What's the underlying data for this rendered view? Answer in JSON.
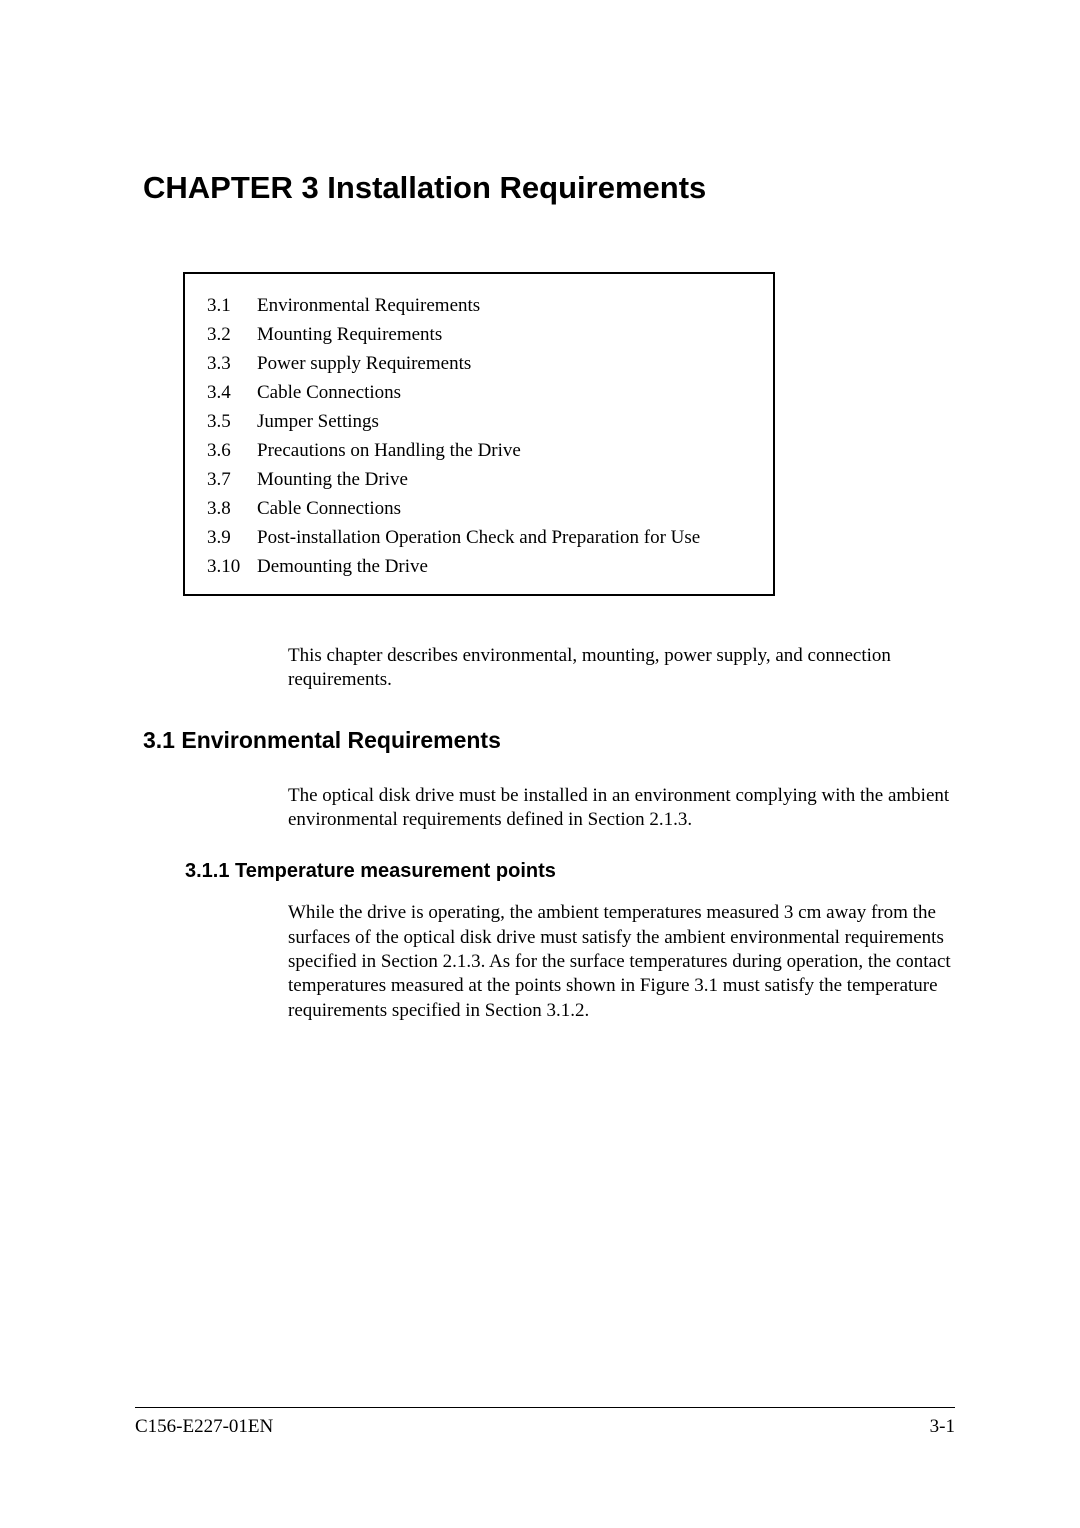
{
  "chapter": {
    "title": "CHAPTER 3  Installation Requirements"
  },
  "toc": {
    "items": [
      {
        "num": "3.1",
        "label": "Environmental Requirements"
      },
      {
        "num": "3.2",
        "label": "Mounting Requirements"
      },
      {
        "num": "3.3",
        "label": "Power supply Requirements"
      },
      {
        "num": "3.4",
        "label": "Cable Connections"
      },
      {
        "num": "3.5",
        "label": "Jumper Settings"
      },
      {
        "num": "3.6",
        "label": "Precautions on Handling the Drive"
      },
      {
        "num": "3.7",
        "label": "Mounting the Drive"
      },
      {
        "num": "3.8",
        "label": "Cable Connections"
      },
      {
        "num": "3.9",
        "label": "Post-installation Operation Check and Preparation for Use"
      },
      {
        "num": "3.10",
        "label": "Demounting the Drive"
      }
    ]
  },
  "intro": "This chapter describes environmental, mounting, power supply, and connection requirements.",
  "section_3_1": {
    "heading": "3.1  Environmental Requirements",
    "body": "The optical disk drive must be installed in an environment complying with the ambient environmental requirements defined in Section 2.1.3."
  },
  "section_3_1_1": {
    "heading": "3.1.1  Temperature measurement points",
    "body": "While the drive is operating, the ambient temperatures measured 3 cm away from the surfaces of the optical disk drive must satisfy the ambient environmental requirements specified in Section 2.1.3.  As for the surface temperatures during operation, the contact temperatures measured at the points shown in Figure 3.1 must satisfy the temperature requirements specified in Section 3.1.2."
  },
  "footer": {
    "doc_id": "C156-E227-01EN",
    "page": "3-1"
  }
}
